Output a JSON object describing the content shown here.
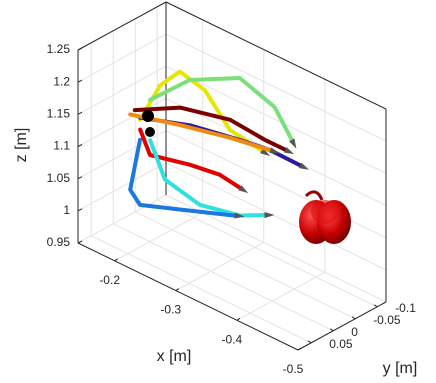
{
  "chart_data": {
    "type": "line3d",
    "xlabel": "x [m]",
    "ylabel": "y [m]",
    "zlabel": "z [m]",
    "xlim": [
      -0.14,
      -0.5
    ],
    "ylim": [
      0.08,
      -0.12
    ],
    "zlim": [
      0.95,
      1.25
    ],
    "xticks": [
      -0.2,
      -0.3,
      -0.4,
      -0.5
    ],
    "yticks": [
      -0.1,
      -0.05,
      0,
      0.05
    ],
    "zticks": [
      0.95,
      1,
      1.05,
      1.1,
      1.15,
      1.2,
      1.25
    ],
    "grid": true,
    "series": [
      {
        "color": "#e6e600",
        "x": [
          -0.184,
          -0.217,
          -0.249,
          -0.29,
          -0.331,
          -0.383
        ],
        "y": [
          0,
          0,
          0,
          0,
          0,
          0
        ],
        "z": [
          1.132,
          1.201,
          1.237,
          1.227,
          1.184,
          1.176
        ]
      },
      {
        "color": "#7be07b",
        "x": [
          -0.157,
          -0.222,
          -0.304,
          -0.361,
          -0.389
        ],
        "y": [
          -0.06,
          -0.06,
          -0.06,
          -0.06,
          -0.06
        ],
        "z": [
          1.128,
          1.189,
          1.23,
          1.211,
          1.173
        ]
      },
      {
        "color": "#e00000",
        "x": [
          -0.213,
          -0.229,
          -0.294,
          -0.343,
          -0.376
        ],
        "y": [
          0.04,
          0.04,
          0.04,
          0.04,
          0.04
        ],
        "z": [
          1.145,
          1.113,
          1.128,
          1.135,
          1.13
        ]
      },
      {
        "color": "#7a0000",
        "x": [
          -0.161,
          -0.235,
          -0.317,
          -0.374,
          -0.407
        ],
        "y": [
          -0.02,
          -0.02,
          -0.02,
          -0.02,
          -0.02
        ],
        "z": [
          1.129,
          1.167,
          1.186,
          1.181,
          1.181
        ]
      },
      {
        "color": "#2a1aa0",
        "x": [
          -0.155,
          -0.237,
          -0.319,
          -0.368,
          -0.417
        ],
        "y": [
          -0.04,
          -0.04,
          -0.04,
          -0.04,
          -0.04
        ],
        "z": [
          1.107,
          1.133,
          1.148,
          1.155,
          1.154
        ]
      },
      {
        "color": "#f08a10",
        "x": [
          -0.168,
          -0.249,
          -0.331,
          -0.397
        ],
        "y": [
          0,
          0,
          0,
          0
        ],
        "z": [
          1.133,
          1.154,
          1.172,
          1.183
        ]
      },
      {
        "color": "#30e0e0",
        "x": [
          -0.215,
          -0.239,
          -0.296,
          -0.362,
          -0.402
        ],
        "y": [
          0.02,
          0.02,
          0.02,
          0.02,
          0.02
        ],
        "z": [
          1.122,
          1.072,
          1.059,
          1.073,
          1.092
        ]
      },
      {
        "color": "#1a78e0",
        "x": [
          -0.227,
          -0.211,
          -0.227,
          -0.301,
          -0.382
        ],
        "y": [
          0.06,
          0.06,
          0.06,
          0.06,
          0.06
        ],
        "z": [
          1.143,
          1.058,
          1.042,
          1.068,
          1.097
        ]
      }
    ]
  }
}
